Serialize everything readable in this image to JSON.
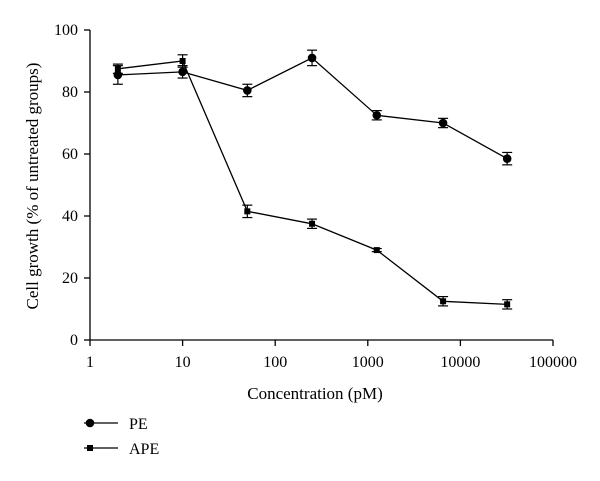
{
  "chart_data": {
    "type": "line",
    "xlabel": "Concentration (pM)",
    "ylabel": "Cell growth (% of untreated groups)",
    "xscale": "log",
    "xlim": [
      1,
      100000
    ],
    "ylim": [
      0,
      100
    ],
    "xticks": [
      1,
      10,
      100,
      1000,
      10000,
      100000
    ],
    "xtick_labels": [
      "1",
      "10",
      "100",
      "1000",
      "10000",
      "100000"
    ],
    "yticks": [
      0,
      20,
      40,
      60,
      80,
      100
    ],
    "ytick_labels": [
      "0",
      "20",
      "40",
      "60",
      "80",
      "100"
    ],
    "grid": false,
    "legend_position": "bottom-left",
    "series": [
      {
        "name": "PE",
        "marker": "circle",
        "x": [
          2,
          10,
          50,
          250,
          1250,
          6500,
          32000
        ],
        "y": [
          85.5,
          86.5,
          80.5,
          91,
          72.5,
          70,
          58.5
        ],
        "err": [
          3,
          2,
          2,
          2.5,
          1.5,
          1.5,
          2
        ]
      },
      {
        "name": "APE",
        "marker": "square",
        "x": [
          2,
          10,
          50,
          250,
          1250,
          6500,
          32000
        ],
        "y": [
          87.5,
          90,
          41.5,
          37.5,
          29,
          12.5,
          11.5
        ],
        "err": [
          1.5,
          2,
          2,
          1.5,
          0.5,
          1.5,
          1.5
        ]
      }
    ]
  }
}
